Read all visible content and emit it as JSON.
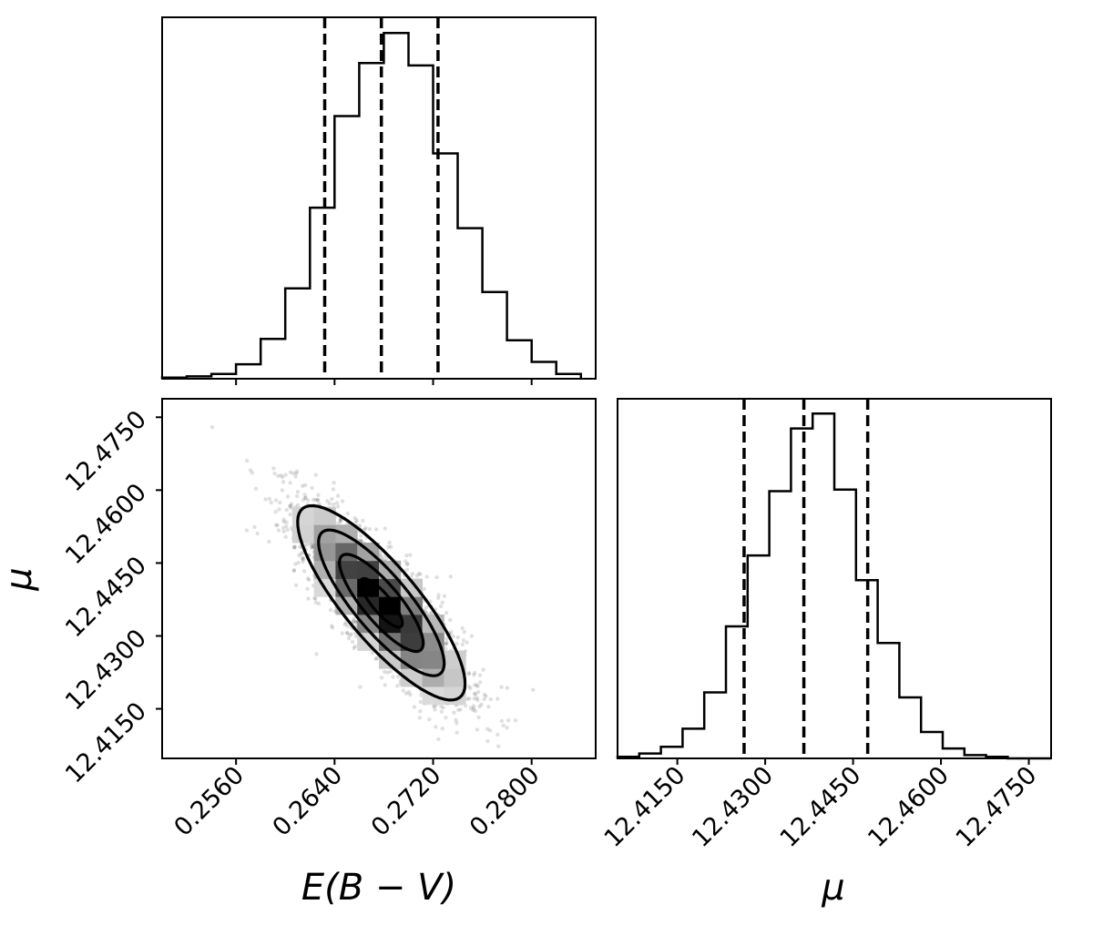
{
  "chart_data": [
    {
      "panel": "top-left",
      "type": "histogram",
      "xlabel": "",
      "ylabel": "",
      "xlim": [
        0.25,
        0.2852
      ],
      "x_ticks": [
        "0.2560",
        "0.2640",
        "0.2720",
        "0.2800"
      ],
      "x_tick_values": [
        0.256,
        0.264,
        0.272,
        0.28
      ],
      "x_tick_labels_visible": false,
      "bin_edges": [
        0.25,
        0.252,
        0.254,
        0.256,
        0.258,
        0.26,
        0.262,
        0.264,
        0.266,
        0.268,
        0.27,
        0.272,
        0.274,
        0.276,
        0.278,
        0.28,
        0.282,
        0.284
      ],
      "counts": [
        1,
        2,
        4,
        12,
        33,
        75,
        142,
        218,
        262,
        287,
        260,
        187,
        125,
        72,
        32,
        14,
        4
      ],
      "quantile_lines": [
        0.2632,
        0.2678,
        0.2724
      ],
      "ylim": [
        0,
        300
      ]
    },
    {
      "panel": "bottom-left",
      "type": "scatter",
      "xlabel": "E(B − V)",
      "ylabel": "μ",
      "xlim": [
        0.25,
        0.2852
      ],
      "ylim": [
        12.4048,
        12.4788
      ],
      "x_ticks": [
        "0.2560",
        "0.2640",
        "0.2720",
        "0.2800"
      ],
      "x_tick_values": [
        0.256,
        0.264,
        0.272,
        0.28
      ],
      "y_ticks": [
        "12.4150",
        "12.4300",
        "12.4450",
        "12.4600",
        "12.4750"
      ],
      "y_tick_values": [
        12.415,
        12.43,
        12.445,
        12.46,
        12.475
      ],
      "distribution": {
        "mean": [
          0.2678,
          12.4368
        ],
        "sd": [
          0.0034,
          0.01
        ],
        "correlation": -0.83,
        "n_points": 2600
      },
      "contour_levels_sigma": [
        0.5,
        1.0,
        1.5,
        2.0
      ]
    },
    {
      "panel": "bottom-right",
      "type": "histogram",
      "xlabel": "μ",
      "ylabel": "",
      "xlim": [
        12.4048,
        12.4788
      ],
      "x_ticks": [
        "12.4150",
        "12.4300",
        "12.4450",
        "12.4600",
        "12.4750"
      ],
      "x_tick_values": [
        12.415,
        12.43,
        12.445,
        12.46,
        12.475
      ],
      "bin_edges": [
        12.4048,
        12.4085,
        12.4122,
        12.4159,
        12.4196,
        12.4233,
        12.427,
        12.4307,
        12.4344,
        12.4381,
        12.4418,
        12.4455,
        12.4492,
        12.4529,
        12.4566,
        12.4603,
        12.464,
        12.4677,
        12.4714,
        12.4751,
        12.4788
      ],
      "counts": [
        1,
        3,
        7,
        18,
        40,
        80,
        123,
        162,
        200,
        209,
        163,
        108,
        70,
        37,
        16,
        6,
        2,
        1,
        0,
        0
      ],
      "quantile_lines": [
        12.4264,
        12.4366,
        12.4475
      ],
      "ylim": [
        0,
        218
      ]
    }
  ]
}
